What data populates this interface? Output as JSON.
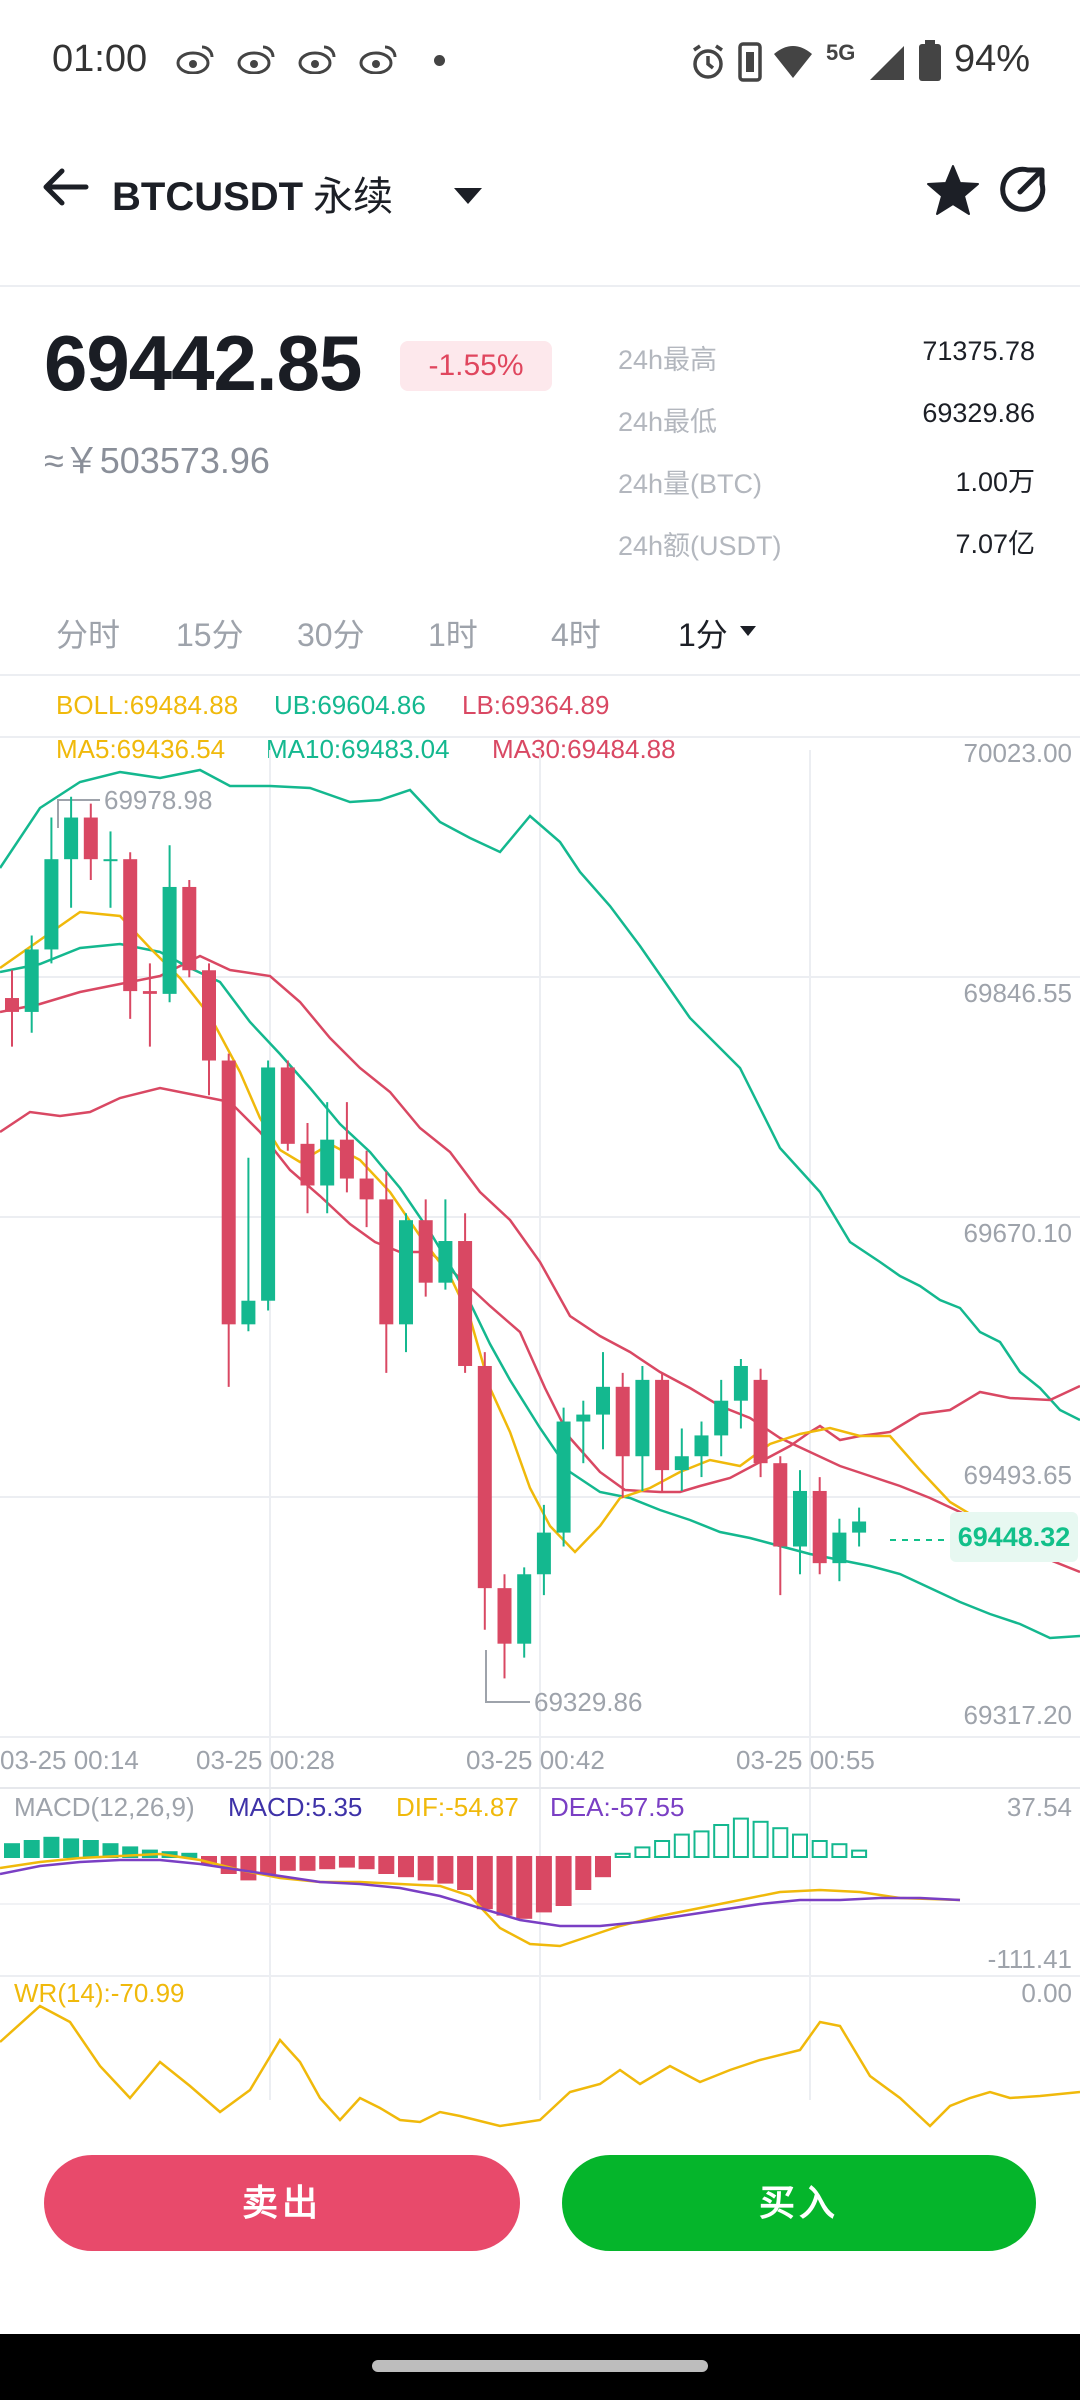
{
  "status_bar": {
    "time": "01:00",
    "network": "5G",
    "battery": "94%"
  },
  "header": {
    "symbol": "BTCUSDT",
    "contract": "永续"
  },
  "ticker": {
    "price": "69442.85",
    "change": "-1.55%",
    "cny": "≈￥503573.96",
    "stats": [
      {
        "label": "24h最高",
        "value": "71375.78"
      },
      {
        "label": "24h最低",
        "value": "69329.86"
      },
      {
        "label": "24h量(BTC)",
        "value": "1.00万"
      },
      {
        "label": "24h额(USDT)",
        "value": "7.07亿"
      }
    ]
  },
  "tabs": [
    "分时",
    "15分",
    "30分",
    "1时",
    "4时",
    "1分"
  ],
  "indicators": {
    "boll": "BOLL:69484.88",
    "ub": "UB:69604.86",
    "lb": "LB:69364.89",
    "ma5": "MA5:69436.54",
    "ma10": "MA10:69483.04",
    "ma30": "MA30:69484.88"
  },
  "price_axis": [
    "70023.00",
    "69846.55",
    "69670.10",
    "69493.65",
    "69317.20"
  ],
  "last_price_tag": "69448.32",
  "high_marker": "69978.98",
  "low_marker": "69329.86",
  "time_axis": [
    "03-25 00:14",
    "03-25 00:28",
    "03-25 00:42",
    "03-25 00:55"
  ],
  "macd": {
    "title": "MACD(12,26,9)",
    "macd": "MACD:5.35",
    "dif": "DIF:-54.87",
    "dea": "DEA:-57.55",
    "axis_top": "37.54",
    "axis_bottom": "-111.41"
  },
  "wr": {
    "title": "WR(14):-70.99",
    "axis_top": "0.00"
  },
  "actions": {
    "sell": "卖出",
    "buy": "买入"
  },
  "colors": {
    "up": "#14b88f",
    "down": "#d94863",
    "gold": "#f0b90b",
    "buy": "#05b52b",
    "sell": "#e84a6b"
  },
  "chart_data": {
    "type": "candlestick",
    "ylim": [
      69317.2,
      70023.0
    ],
    "candles": [
      {
        "o": 69835,
        "h": 69855,
        "l": 69800,
        "c": 69825
      },
      {
        "o": 69825,
        "h": 69880,
        "l": 69810,
        "c": 69870
      },
      {
        "o": 69870,
        "h": 69965,
        "l": 69860,
        "c": 69935
      },
      {
        "o": 69935,
        "h": 69980,
        "l": 69900,
        "c": 69965
      },
      {
        "o": 69965,
        "h": 69975,
        "l": 69920,
        "c": 69935
      },
      {
        "o": 69935,
        "h": 69955,
        "l": 69900,
        "c": 69935
      },
      {
        "o": 69935,
        "h": 69940,
        "l": 69820,
        "c": 69840
      },
      {
        "o": 69840,
        "h": 69860,
        "l": 69800,
        "c": 69838
      },
      {
        "o": 69838,
        "h": 69945,
        "l": 69832,
        "c": 69915
      },
      {
        "o": 69915,
        "h": 69920,
        "l": 69850,
        "c": 69855
      },
      {
        "o": 69855,
        "h": 69860,
        "l": 69765,
        "c": 69790
      },
      {
        "o": 69790,
        "h": 69795,
        "l": 69555,
        "c": 69600
      },
      {
        "o": 69600,
        "h": 69720,
        "l": 69595,
        "c": 69617
      },
      {
        "o": 69617,
        "h": 69790,
        "l": 69610,
        "c": 69785
      },
      {
        "o": 69785,
        "h": 69790,
        "l": 69725,
        "c": 69730
      },
      {
        "o": 69730,
        "h": 69745,
        "l": 69680,
        "c": 69700
      },
      {
        "o": 69700,
        "h": 69760,
        "l": 69680,
        "c": 69733
      },
      {
        "o": 69733,
        "h": 69760,
        "l": 69695,
        "c": 69705
      },
      {
        "o": 69705,
        "h": 69725,
        "l": 69670,
        "c": 69690
      },
      {
        "o": 69690,
        "h": 69710,
        "l": 69565,
        "c": 69600
      },
      {
        "o": 69600,
        "h": 69680,
        "l": 69580,
        "c": 69675
      },
      {
        "o": 69675,
        "h": 69690,
        "l": 69620,
        "c": 69630
      },
      {
        "o": 69630,
        "h": 69690,
        "l": 69625,
        "c": 69660
      },
      {
        "o": 69660,
        "h": 69680,
        "l": 69565,
        "c": 69570
      },
      {
        "o": 69570,
        "h": 69580,
        "l": 69380,
        "c": 69410
      },
      {
        "o": 69410,
        "h": 69420,
        "l": 69345,
        "c": 69370
      },
      {
        "o": 69370,
        "h": 69425,
        "l": 69360,
        "c": 69420
      },
      {
        "o": 69420,
        "h": 69470,
        "l": 69405,
        "c": 69450
      },
      {
        "o": 69450,
        "h": 69540,
        "l": 69440,
        "c": 69530
      },
      {
        "o": 69530,
        "h": 69545,
        "l": 69500,
        "c": 69535
      },
      {
        "o": 69535,
        "h": 69580,
        "l": 69510,
        "c": 69555
      },
      {
        "o": 69555,
        "h": 69565,
        "l": 69475,
        "c": 69505
      },
      {
        "o": 69505,
        "h": 69570,
        "l": 69480,
        "c": 69560
      },
      {
        "o": 69560,
        "h": 69565,
        "l": 69480,
        "c": 69495
      },
      {
        "o": 69495,
        "h": 69525,
        "l": 69480,
        "c": 69505
      },
      {
        "o": 69505,
        "h": 69530,
        "l": 69490,
        "c": 69520
      },
      {
        "o": 69520,
        "h": 69560,
        "l": 69505,
        "c": 69545
      },
      {
        "o": 69545,
        "h": 69575,
        "l": 69525,
        "c": 69570
      },
      {
        "o": 69560,
        "h": 69568,
        "l": 69490,
        "c": 69500
      },
      {
        "o": 69500,
        "h": 69505,
        "l": 69405,
        "c": 69440
      },
      {
        "o": 69440,
        "h": 69495,
        "l": 69420,
        "c": 69480
      },
      {
        "o": 69480,
        "h": 69490,
        "l": 69420,
        "c": 69428
      },
      {
        "o": 69428,
        "h": 69460,
        "l": 69415,
        "c": 69450
      },
      {
        "o": 69450,
        "h": 69468,
        "l": 69440,
        "c": 69458
      }
    ]
  }
}
